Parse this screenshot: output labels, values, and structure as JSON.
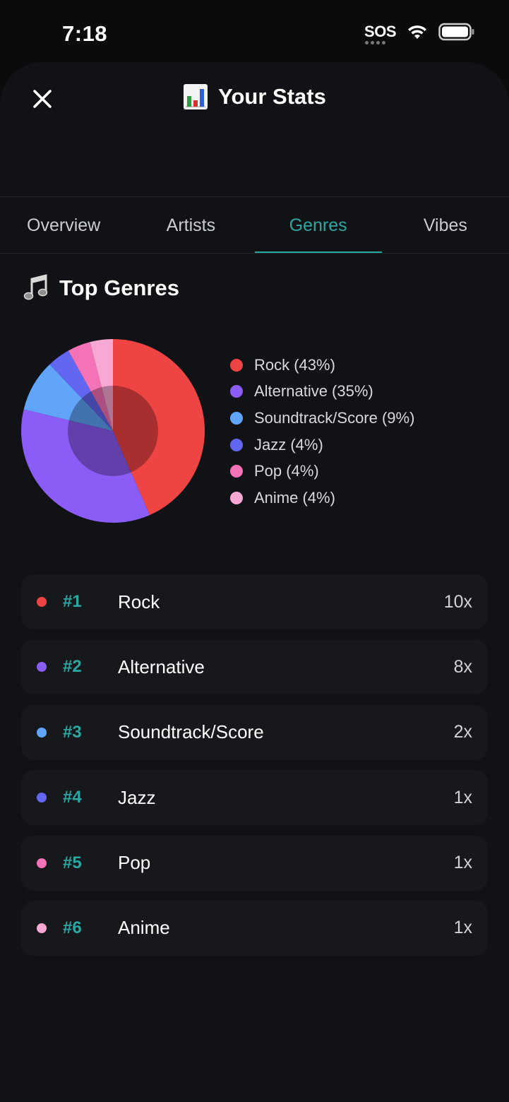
{
  "status_bar": {
    "time": "7:18",
    "sos": "SOS"
  },
  "header": {
    "title": "Your Stats",
    "title_icon": "bar-chart-icon",
    "close_icon": "close-icon"
  },
  "tabs": [
    {
      "label": "Overview",
      "active": false
    },
    {
      "label": "Artists",
      "active": false
    },
    {
      "label": "Genres",
      "active": true
    },
    {
      "label": "Vibes",
      "active": false
    }
  ],
  "section": {
    "title": "Top Genres",
    "icon": "music-notes-icon"
  },
  "colors": {
    "accent": "#2ba7a1",
    "background": "#111215",
    "row_bg": "#16181c"
  },
  "chart_data": {
    "type": "pie",
    "categories": [
      "Rock",
      "Alternative",
      "Soundtrack/Score",
      "Jazz",
      "Pop",
      "Anime"
    ],
    "values": [
      43,
      35,
      9,
      4,
      4,
      4
    ],
    "colors": [
      "#ef4444",
      "#8b5cf6",
      "#60a5fa",
      "#6366f1",
      "#f472b6",
      "#f9a8d4"
    ],
    "legend_labels": [
      "Rock (43%)",
      "Alternative (35%)",
      "Soundtrack/Score (9%)",
      "Jazz (4%)",
      "Pop (4%)",
      "Anime (4%)"
    ],
    "legend_position": "right"
  },
  "genres": [
    {
      "rank": "#1",
      "name": "Rock",
      "count": "10x",
      "color": "#ef4444"
    },
    {
      "rank": "#2",
      "name": "Alternative",
      "count": "8x",
      "color": "#8b5cf6"
    },
    {
      "rank": "#3",
      "name": "Soundtrack/Score",
      "count": "2x",
      "color": "#60a5fa"
    },
    {
      "rank": "#4",
      "name": "Jazz",
      "count": "1x",
      "color": "#6366f1"
    },
    {
      "rank": "#5",
      "name": "Pop",
      "count": "1x",
      "color": "#f472b6"
    },
    {
      "rank": "#6",
      "name": "Anime",
      "count": "1x",
      "color": "#f9a8d4"
    }
  ]
}
